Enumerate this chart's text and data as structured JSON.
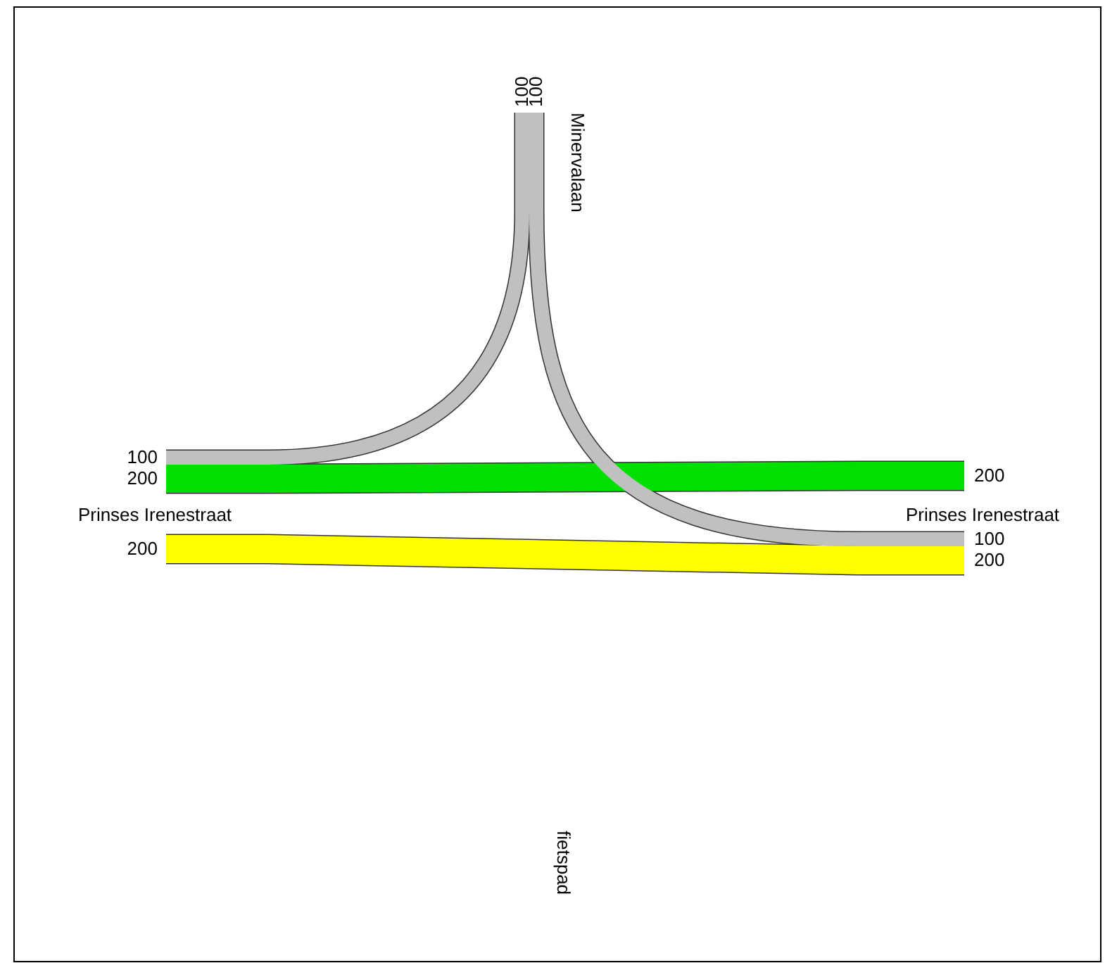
{
  "chart_data": {
    "type": "other",
    "categories": [
      "Minervalaan",
      "Prinses Irenestraat",
      "Prinses Irenestraat",
      "fietspad"
    ],
    "series": [
      {
        "color": "#c0c0c0",
        "values": [
          100,
          100,
          null,
          null
        ],
        "value_labels": [
          "100",
          "100",
          null,
          null
        ]
      },
      {
        "color": "#00e000",
        "values": [
          null,
          200,
          200,
          null
        ],
        "value_labels": [
          null,
          "200",
          "200",
          null
        ]
      },
      {
        "color": "#c0c0c0",
        "values": [
          100,
          null,
          100,
          null
        ],
        "value_labels": [
          "100",
          null,
          "100",
          null
        ]
      },
      {
        "color": "#ffff00",
        "values": [
          null,
          200,
          200,
          null
        ],
        "value_labels": [
          null,
          "200",
          "200",
          null
        ]
      }
    ]
  }
}
